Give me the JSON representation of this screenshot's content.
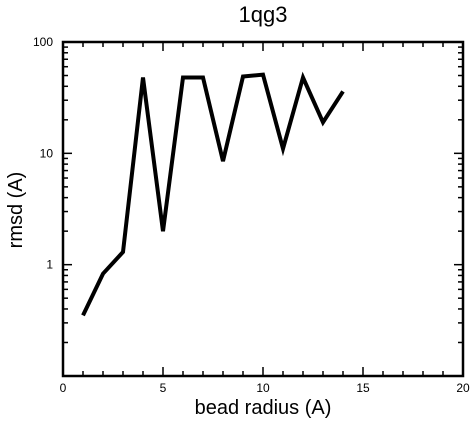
{
  "chart_data": {
    "type": "line",
    "title": "1qg3",
    "xlabel": "bead radius (A)",
    "ylabel": "rmsd (A)",
    "xlim": [
      0,
      20
    ],
    "ylim": [
      0.1,
      100
    ],
    "yscale": "log",
    "grid": false,
    "x_ticks": {
      "major": [
        0,
        5,
        10,
        15,
        20
      ],
      "minor_step": 1
    },
    "y_ticks": {
      "major": [
        1,
        10,
        100
      ],
      "minor": [
        0.2,
        0.3,
        0.4,
        0.5,
        0.6,
        0.7,
        0.8,
        0.9,
        2,
        3,
        4,
        5,
        6,
        7,
        8,
        9,
        20,
        30,
        40,
        50,
        60,
        70,
        80,
        90
      ]
    },
    "x_tick_labels": [
      "0",
      "5",
      "10",
      "15",
      "20"
    ],
    "y_tick_labels": [
      "1",
      "10",
      "100"
    ],
    "series": [
      {
        "x": [
          1,
          2,
          3,
          4,
          5,
          6,
          7,
          8,
          9,
          10,
          11,
          12,
          13,
          14
        ],
        "values": [
          0.35,
          0.83,
          1.3,
          48,
          2.0,
          48,
          48,
          8.5,
          49,
          51,
          11,
          48,
          19,
          36
        ],
        "color": "#000000"
      }
    ]
  }
}
